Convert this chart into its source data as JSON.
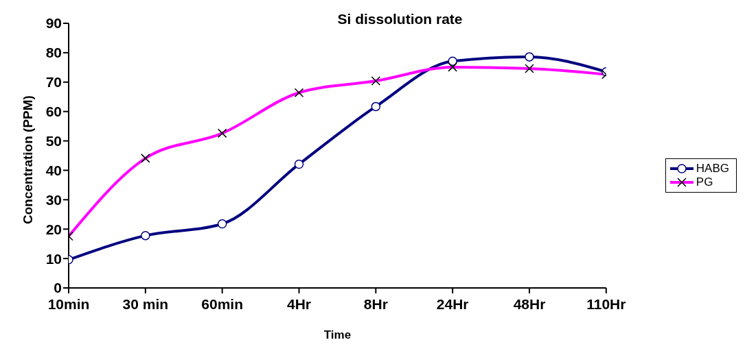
{
  "chart_data": {
    "type": "line",
    "title": "Si dissolution rate",
    "xlabel": "Time",
    "ylabel": "Concentration (PPM)",
    "categories": [
      "10min",
      "30 min",
      "60min",
      "4Hr",
      "8Hr",
      "24Hr",
      "48Hr",
      "110Hr"
    ],
    "series": [
      {
        "name": "HABG",
        "color": "#000080",
        "marker": "circle",
        "values": [
          9.6,
          17.8,
          21.8,
          42.1,
          61.7,
          77.1,
          78.6,
          73.5
        ]
      },
      {
        "name": "PG",
        "color": "#ff00ff",
        "marker": "cross",
        "values": [
          17.6,
          44.1,
          52.6,
          66.4,
          70.4,
          75.1,
          74.6,
          72.6
        ]
      }
    ],
    "ylim": [
      0,
      90
    ],
    "yticks": [
      0,
      10,
      20,
      30,
      40,
      50,
      60,
      70,
      80,
      90
    ],
    "grid": false,
    "legend": "right",
    "line_style": "solid"
  }
}
